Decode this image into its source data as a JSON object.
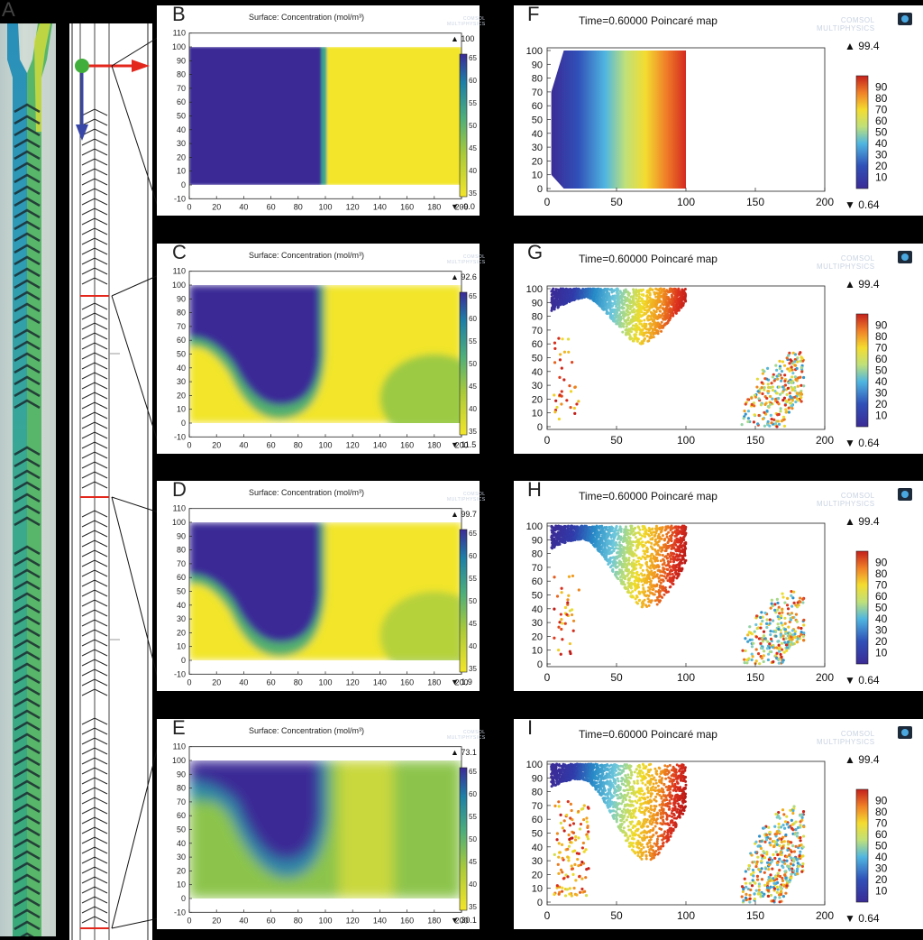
{
  "labels": {
    "A": "A",
    "B": "B",
    "C": "C",
    "D": "D",
    "E": "E",
    "F": "F",
    "G": "G",
    "H": "H",
    "I": "I"
  },
  "surface_title": "Surface: Concentration (mol/m³)",
  "poincare_title": "Time=0.60000  Poincaré map",
  "watermark_line1": "COMSOL",
  "watermark_line2": "MULTIPHYSICS",
  "surface_panels": [
    {
      "id": "B",
      "range_max": "▲ 100",
      "range_min": "▼ -9.0",
      "colorbar_ticks": [
        "65",
        "60",
        "55",
        "50",
        "45",
        "40",
        "35"
      ]
    },
    {
      "id": "C",
      "range_max": "▲ 92.6",
      "range_min": "▼ 11.5",
      "colorbar_ticks": [
        "65",
        "60",
        "55",
        "50",
        "45",
        "40",
        "35"
      ]
    },
    {
      "id": "D",
      "range_max": "▲ 99.7",
      "range_min": "▼ 1.9",
      "colorbar_ticks": [
        "65",
        "60",
        "55",
        "50",
        "45",
        "40",
        "35"
      ]
    },
    {
      "id": "E",
      "range_max": "▲ 73.1",
      "range_min": "▼ 30.1",
      "colorbar_ticks": [
        "65",
        "60",
        "55",
        "50",
        "45",
        "40",
        "35"
      ]
    }
  ],
  "surface_axes": {
    "y_ticks": [
      "110",
      "100",
      "90",
      "80",
      "70",
      "60",
      "50",
      "40",
      "30",
      "20",
      "10",
      "0",
      "-10"
    ],
    "x_ticks": [
      "0",
      "20",
      "40",
      "60",
      "80",
      "100",
      "120",
      "140",
      "160",
      "180",
      "200"
    ]
  },
  "poincare_panels": [
    {
      "id": "F",
      "range_max": "▲ 99.4",
      "range_min": "▼ 0.64"
    },
    {
      "id": "G",
      "range_max": "▲ 99.4",
      "range_min": "▼ 0.64"
    },
    {
      "id": "H",
      "range_max": "▲ 99.4",
      "range_min": "▼ 0.64"
    },
    {
      "id": "I",
      "range_max": "▲ 99.4",
      "range_min": "▼ 0.64"
    }
  ],
  "poincare_axes": {
    "y_ticks": [
      "100",
      "90",
      "80",
      "70",
      "60",
      "50",
      "40",
      "30",
      "20",
      "10",
      "0"
    ],
    "x_ticks": [
      "0",
      "50",
      "100",
      "150",
      "200"
    ],
    "colorbar_ticks": [
      "90",
      "80",
      "70",
      "60",
      "50",
      "40",
      "30",
      "20",
      "10"
    ]
  },
  "colors": {
    "low": "#3b2b96",
    "teal": "#1e7fa6",
    "green": "#4fae7a",
    "yellowgreen": "#a9c93a",
    "high": "#f2e52a",
    "arrow_red": "#e3271c",
    "arrow_blue": "#3846a8",
    "dot_green": "#3fae3a"
  }
}
